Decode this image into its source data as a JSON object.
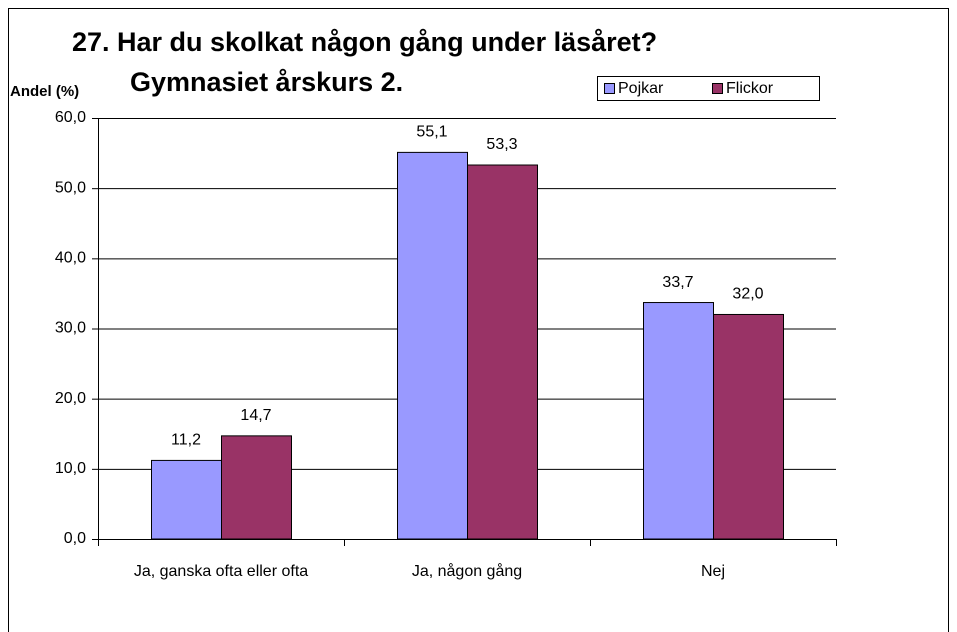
{
  "chart_data": {
    "type": "bar",
    "title": "27. Har du skolkat någon gång under läsåret?",
    "subtitle": "Gymnasiet årskurs 2.",
    "y_label": "Andel (%)",
    "categories": [
      "Ja, ganska ofta eller ofta",
      "Ja, någon gång",
      "Nej"
    ],
    "series": [
      {
        "name": "Pojkar",
        "color": "#9999ff",
        "values": [
          11.2,
          55.1,
          33.7
        ],
        "value_labels": [
          "11,2",
          "55,1",
          "33,7"
        ]
      },
      {
        "name": "Flickor",
        "color": "#993366",
        "values": [
          14.7,
          53.3,
          32.0
        ],
        "value_labels": [
          "14,7",
          "53,3",
          "32,0"
        ]
      }
    ],
    "ylim": [
      0,
      60
    ],
    "yticks": [
      {
        "value": 0,
        "label": "0,0"
      },
      {
        "value": 10,
        "label": "10,0"
      },
      {
        "value": 20,
        "label": "20,0"
      },
      {
        "value": 30,
        "label": "30,0"
      },
      {
        "value": 40,
        "label": "40,0"
      },
      {
        "value": 50,
        "label": "50,0"
      },
      {
        "value": 60,
        "label": "60,0"
      }
    ],
    "grid": true,
    "legend": "top-right"
  }
}
